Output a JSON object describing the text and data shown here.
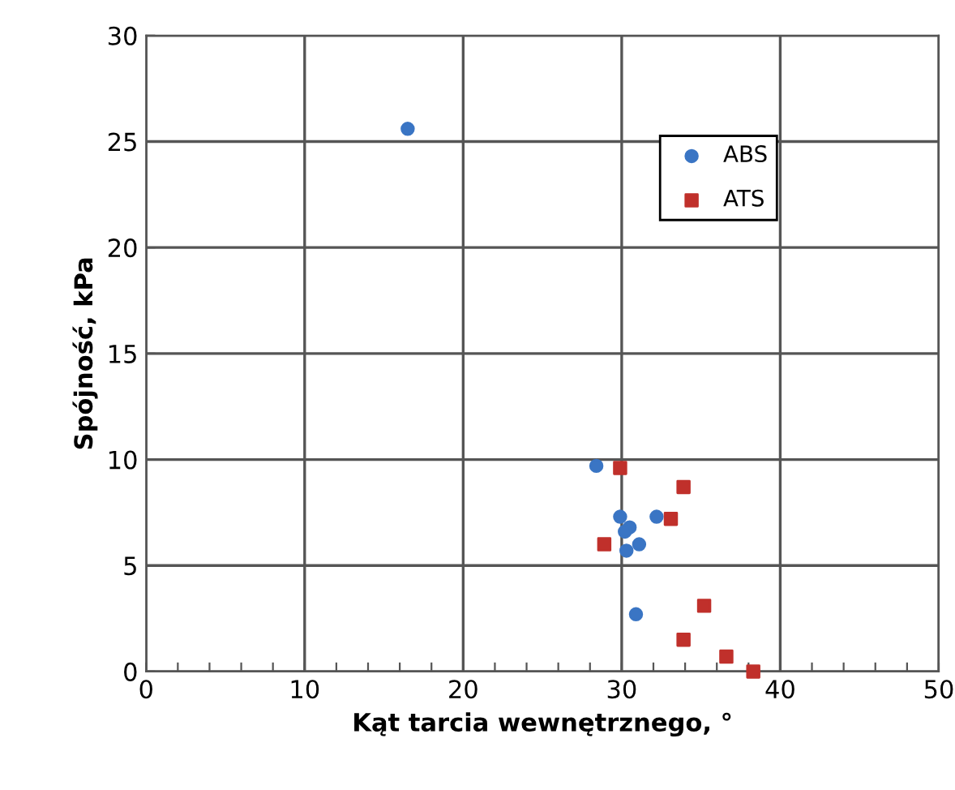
{
  "chart_data": {
    "type": "scatter",
    "xlabel": "Kąt tarcia wewnętrznego, °",
    "ylabel": "Spójność, kPa",
    "xlim": [
      0,
      50
    ],
    "ylim": [
      0,
      30
    ],
    "xticks": [
      0,
      {
        "value": 2,
        "label": null
      },
      {
        "value": 4,
        "label": null
      },
      {
        "value": 6,
        "label": null
      },
      {
        "value": 8,
        "label": null
      },
      10,
      {
        "value": 12,
        "label": null
      },
      {
        "value": 14,
        "label": null
      },
      {
        "value": 16,
        "label": null
      },
      {
        "value": 18,
        "label": null
      },
      20,
      {
        "value": 22,
        "label": null
      },
      {
        "value": 24,
        "label": null
      },
      {
        "value": 26,
        "label": null
      },
      {
        "value": 28,
        "label": null
      },
      30,
      {
        "value": 32,
        "label": null
      },
      {
        "value": 34,
        "label": null
      },
      {
        "value": 36,
        "label": null
      },
      {
        "value": 38,
        "label": null
      },
      40,
      {
        "value": 42,
        "label": null
      },
      {
        "value": 44,
        "label": null
      },
      {
        "value": 46,
        "label": null
      },
      {
        "value": 48,
        "label": null
      },
      50
    ],
    "yticks": [
      0,
      5,
      10,
      15,
      20,
      25,
      30
    ],
    "grid": true,
    "legend": "top right",
    "series": [
      {
        "name": "ABS",
        "color": "#3a75c4",
        "marker": "circle",
        "x": [
          16.5,
          28.4,
          29.9,
          30.5,
          30.2,
          31.1,
          30.3,
          32.2,
          30.9
        ],
        "values": [
          25.6,
          9.7,
          7.3,
          6.8,
          6.6,
          6.0,
          5.7,
          7.3,
          2.7
        ]
      },
      {
        "name": "ATS",
        "color": "#c0302b",
        "marker": "square",
        "x": [
          29.9,
          33.9,
          33.1,
          28.9,
          35.2,
          33.9,
          36.6,
          38.3
        ],
        "values": [
          9.6,
          8.7,
          7.2,
          6.0,
          3.1,
          1.5,
          0.7,
          0.0
        ]
      }
    ]
  }
}
